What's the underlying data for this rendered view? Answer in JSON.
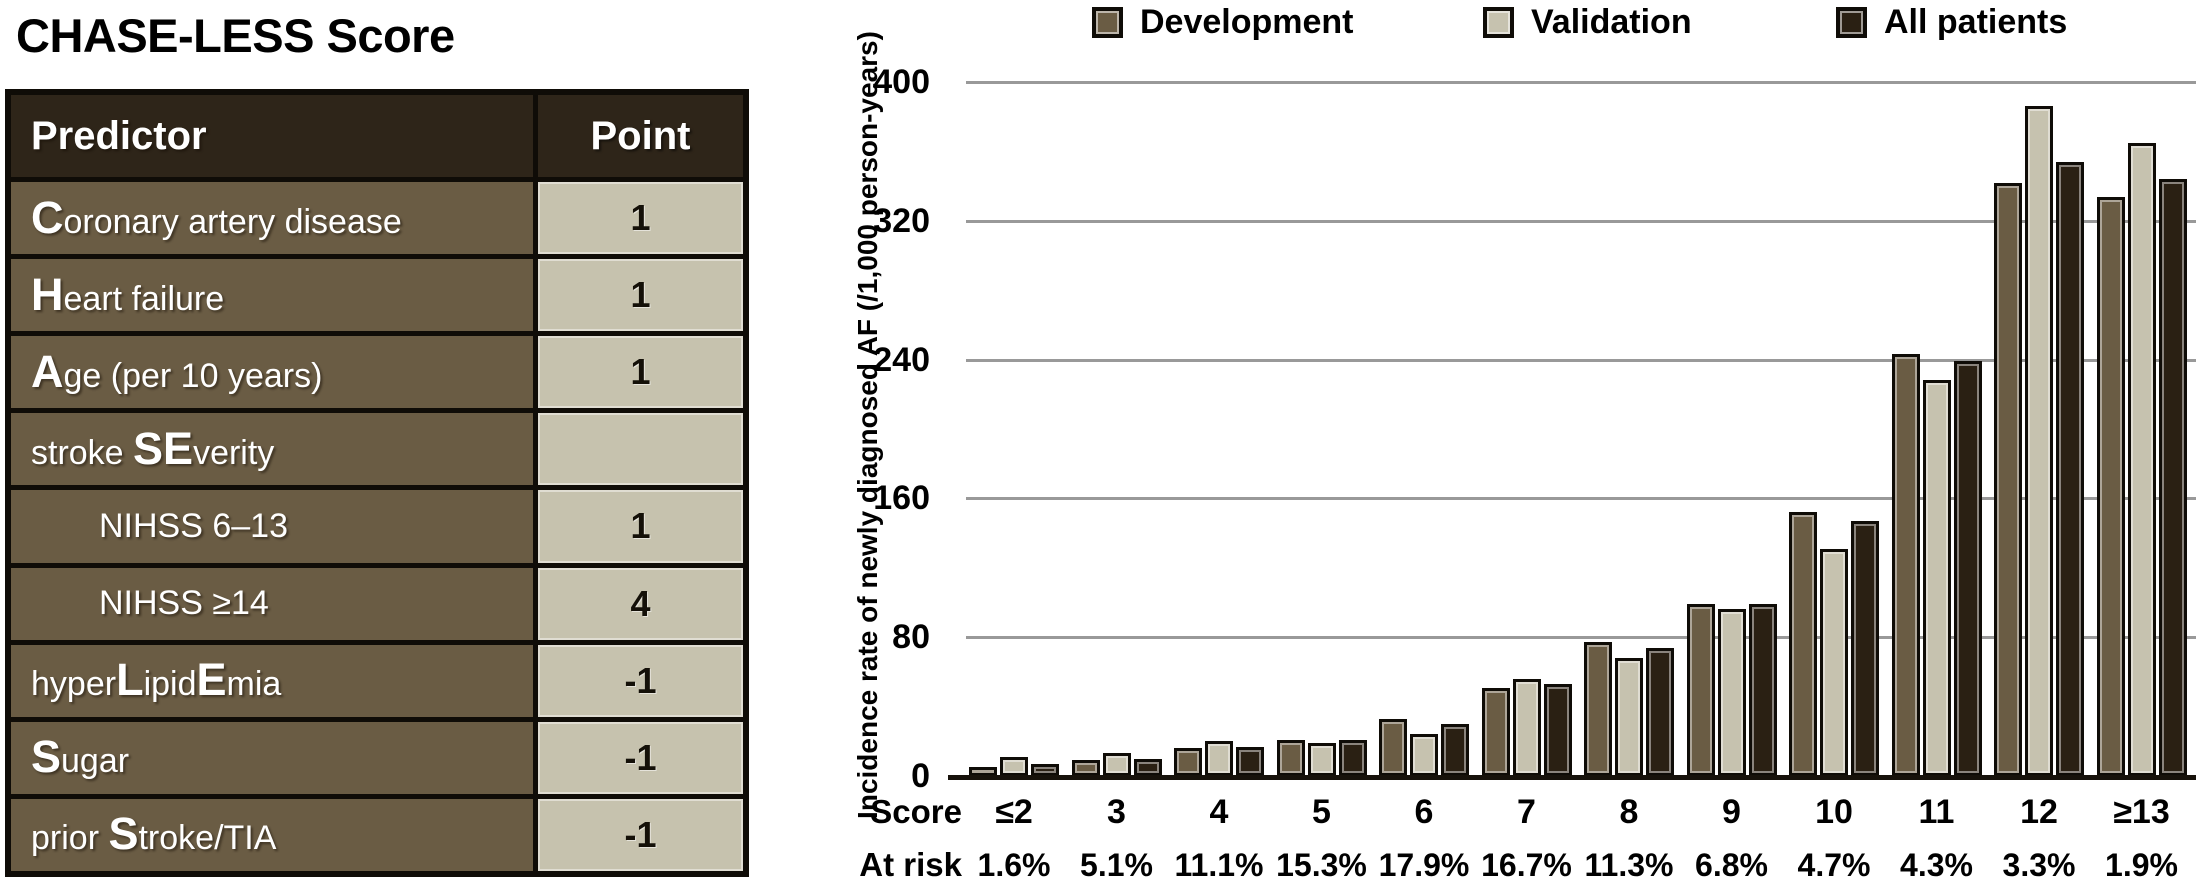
{
  "title": "CHASE-LESS Score",
  "colors": {
    "development": "#6a5c44",
    "validation": "#c6c2af",
    "all_patients": "#2a2013",
    "table_header_bg": "#2e2519",
    "table_row_bg": "#6a5c44",
    "point_cell_bg": "#c6c2ae",
    "gridline": "#999999",
    "axis": "#17120b"
  },
  "table": {
    "header": {
      "predictor": "Predictor",
      "point": "Point"
    },
    "rows": [
      {
        "segments": [
          [
            "C",
            1
          ],
          [
            "oronary artery disease",
            0
          ]
        ],
        "point": "1",
        "indent": false
      },
      {
        "segments": [
          [
            "H",
            1
          ],
          [
            "eart failure",
            0
          ]
        ],
        "point": "1",
        "indent": false
      },
      {
        "segments": [
          [
            "A",
            1
          ],
          [
            "ge (per 10 years)",
            0
          ]
        ],
        "point": "1",
        "indent": false
      },
      {
        "segments": [
          [
            "stroke ",
            0
          ],
          [
            "SE",
            1
          ],
          [
            "verity",
            0
          ]
        ],
        "point": "",
        "indent": false
      },
      {
        "segments": [
          [
            "NIHSS 6–13",
            0
          ]
        ],
        "point": "1",
        "indent": true
      },
      {
        "segments": [
          [
            "NIHSS ≥14",
            0
          ]
        ],
        "point": "4",
        "indent": true
      },
      {
        "segments": [
          [
            "hyper",
            0
          ],
          [
            "L",
            1
          ],
          [
            "ipid",
            0
          ],
          [
            "E",
            1
          ],
          [
            "mia",
            0
          ]
        ],
        "point": "-1",
        "indent": false
      },
      {
        "segments": [
          [
            "S",
            1
          ],
          [
            "ugar",
            0
          ]
        ],
        "point": "-1",
        "indent": false
      },
      {
        "segments": [
          [
            "prior ",
            0
          ],
          [
            "S",
            1
          ],
          [
            "troke/TIA",
            0
          ]
        ],
        "point": "-1",
        "indent": false
      }
    ]
  },
  "chart": {
    "y_label": "Incidence rate of newly diagnosed AF (/1,000 person-years)",
    "x_row_label": "Score",
    "at_risk_label": "At risk"
  },
  "chart_data": {
    "type": "bar",
    "title": "",
    "categories": [
      "≤2",
      "3",
      "4",
      "5",
      "6",
      "7",
      "8",
      "9",
      "10",
      "11",
      "12",
      "≥13"
    ],
    "series": [
      {
        "name": "Development",
        "color": "#6a5c44",
        "values": [
          5,
          9,
          16,
          21,
          33,
          51,
          77,
          99,
          152,
          243,
          342,
          334
        ]
      },
      {
        "name": "Validation",
        "color": "#c6c2af",
        "values": [
          11,
          13,
          20,
          19,
          24,
          56,
          68,
          96,
          131,
          228,
          386,
          365
        ]
      },
      {
        "name": "All patients",
        "color": "#2a2013",
        "values": [
          7,
          10,
          17,
          21,
          30,
          53,
          74,
          99,
          147,
          239,
          354,
          344
        ]
      }
    ],
    "at_risk": [
      "1.6%",
      "5.1%",
      "11.1%",
      "15.3%",
      "17.9%",
      "16.7%",
      "11.3%",
      "6.8%",
      "4.7%",
      "4.3%",
      "3.3%",
      "1.9%"
    ],
    "xlabel": "Score",
    "ylabel": "Incidence rate of newly diagnosed AF (/1,000 person-years)",
    "ylim": [
      0,
      400
    ],
    "yticks": [
      0,
      80,
      160,
      240,
      320,
      400
    ],
    "grid": "horizontal",
    "legend_position": "top"
  }
}
